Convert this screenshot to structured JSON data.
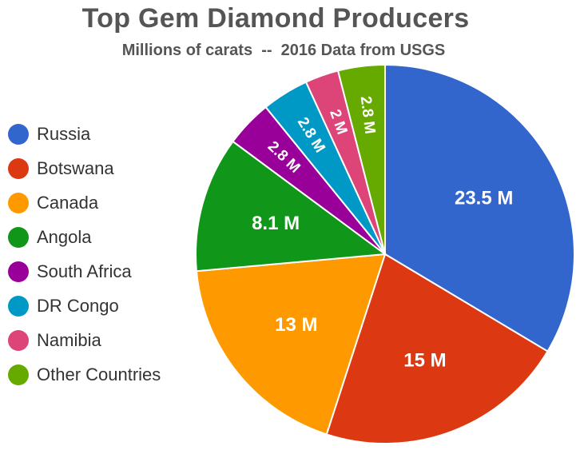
{
  "chart_data": {
    "type": "pie",
    "title": "Top Gem Diamond Producers",
    "subtitle": "Millions of carats  --  2016 Data from USGS",
    "unit": "M",
    "legend_position": "left",
    "slices": [
      {
        "name": "Russia",
        "value": 23.5,
        "label": "23.5 M",
        "color": "#3366cc"
      },
      {
        "name": "Botswana",
        "value": 15,
        "label": "15 M",
        "color": "#dc3912"
      },
      {
        "name": "Canada",
        "value": 13,
        "label": "13 M",
        "color": "#ff9900"
      },
      {
        "name": "Angola",
        "value": 8.1,
        "label": "8.1 M",
        "color": "#109618"
      },
      {
        "name": "South Africa",
        "value": 2.8,
        "label": "2.8 M",
        "color": "#990099"
      },
      {
        "name": "DR Congo",
        "value": 2.8,
        "label": "2.8 M",
        "color": "#0099c6"
      },
      {
        "name": "Namibia",
        "value": 2,
        "label": "2 M",
        "color": "#dd4477"
      },
      {
        "name": "Other Countries",
        "value": 2.8,
        "label": "2.8 M",
        "color": "#66aa00"
      }
    ]
  }
}
